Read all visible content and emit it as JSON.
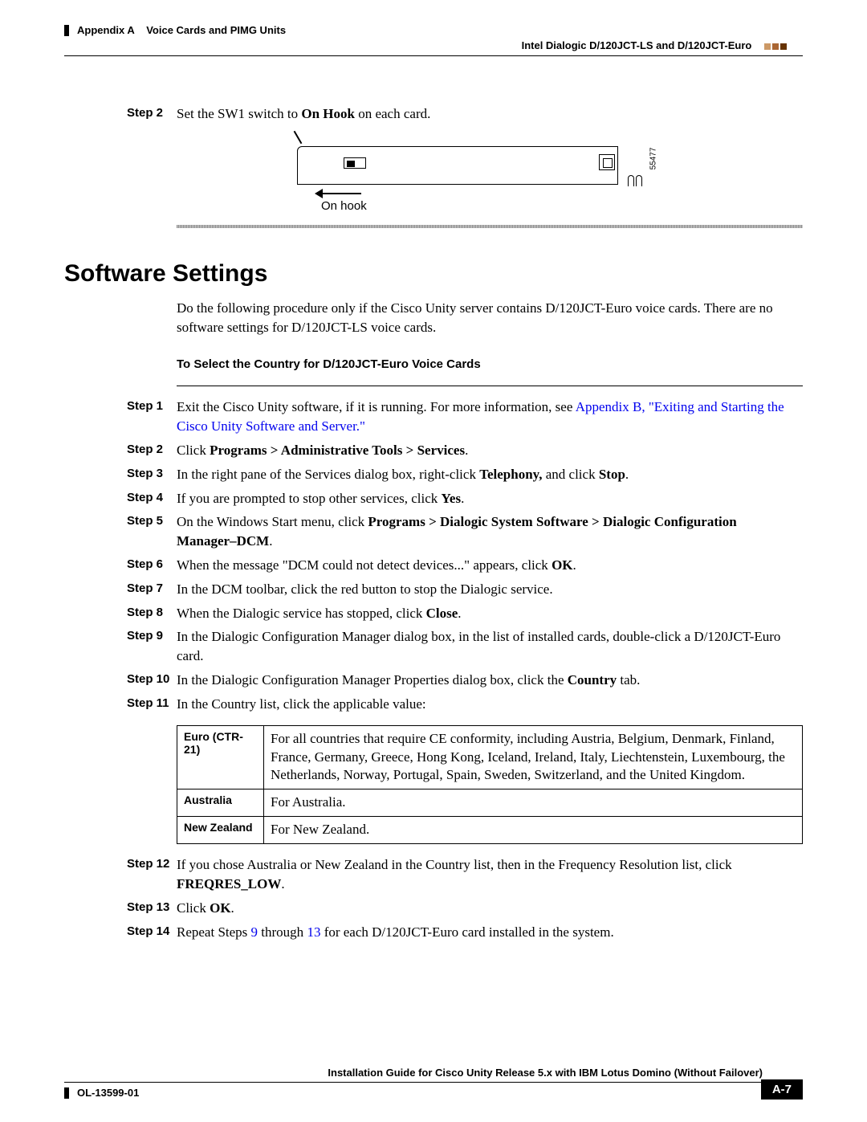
{
  "header": {
    "appendix": "Appendix A",
    "chapter": "Voice Cards and PIMG Units",
    "section_right": "Intel Dialogic D/120JCT-LS and D/120JCT-Euro"
  },
  "pre_step": {
    "label": "Step 2",
    "text_before": "Set the SW1 switch to ",
    "text_bold": "On Hook",
    "text_after": " on each card."
  },
  "diagram": {
    "onhook_label": "On hook",
    "figure_number": "55477"
  },
  "section_title": "Software Settings",
  "intro": "Do the following procedure only if the Cisco Unity server contains D/120JCT-Euro voice cards. There are no software settings for D/120JCT-LS voice cards.",
  "procedure_title": "To Select the Country for D/120JCT-Euro Voice Cards",
  "steps": [
    {
      "label": "Step 1",
      "segments": [
        {
          "t": "Exit the Cisco Unity software, if it is running. For more information, see "
        },
        {
          "t": "Appendix B, \"Exiting and Starting the Cisco Unity Software and Server.\"",
          "cls": "link"
        }
      ]
    },
    {
      "label": "Step 2",
      "segments": [
        {
          "t": "Click "
        },
        {
          "t": "Programs > Administrative Tools > Services",
          "cls": "bold"
        },
        {
          "t": "."
        }
      ]
    },
    {
      "label": "Step 3",
      "segments": [
        {
          "t": "In the right pane of the Services dialog box, right-click "
        },
        {
          "t": "Telephony,",
          "cls": "bold"
        },
        {
          "t": " and click "
        },
        {
          "t": "Stop",
          "cls": "bold"
        },
        {
          "t": "."
        }
      ]
    },
    {
      "label": "Step 4",
      "segments": [
        {
          "t": "If you are prompted to stop other services, click "
        },
        {
          "t": "Yes",
          "cls": "bold"
        },
        {
          "t": "."
        }
      ]
    },
    {
      "label": "Step 5",
      "segments": [
        {
          "t": "On the Windows Start menu, click "
        },
        {
          "t": "Programs > Dialogic System Software > Dialogic Configuration Manager–DCM",
          "cls": "bold"
        },
        {
          "t": "."
        }
      ]
    },
    {
      "label": "Step 6",
      "segments": [
        {
          "t": "When the message \"DCM could not detect devices...\" appears, click "
        },
        {
          "t": "OK",
          "cls": "bold"
        },
        {
          "t": "."
        }
      ]
    },
    {
      "label": "Step 7",
      "segments": [
        {
          "t": "In the DCM toolbar, click the red button to stop the Dialogic service."
        }
      ]
    },
    {
      "label": "Step 8",
      "segments": [
        {
          "t": "When the Dialogic service has stopped, click "
        },
        {
          "t": "Close",
          "cls": "bold"
        },
        {
          "t": "."
        }
      ]
    },
    {
      "label": "Step 9",
      "segments": [
        {
          "t": "In the Dialogic Configuration Manager dialog box, in the list of installed cards, double-click a D/120JCT-Euro card."
        }
      ]
    },
    {
      "label": "Step 10",
      "segments": [
        {
          "t": "In the Dialogic Configuration Manager Properties dialog box, click the "
        },
        {
          "t": "Country",
          "cls": "bold"
        },
        {
          "t": " tab."
        }
      ]
    },
    {
      "label": "Step 11",
      "segments": [
        {
          "t": "In the Country list, click the applicable value:"
        }
      ]
    }
  ],
  "country_table": {
    "rows": [
      {
        "name": "Euro (CTR-21)",
        "desc": "For all countries that require CE conformity, including Austria, Belgium, Denmark, Finland, France, Germany, Greece, Hong Kong, Iceland, Ireland, Italy, Liechtenstein, Luxembourg, the Netherlands, Norway, Portugal, Spain, Sweden, Switzerland, and the United Kingdom."
      },
      {
        "name": "Australia",
        "desc": "For Australia."
      },
      {
        "name": "New Zealand",
        "desc": "For New Zealand."
      }
    ]
  },
  "steps_after": [
    {
      "label": "Step 12",
      "segments": [
        {
          "t": "If you chose Australia or New Zealand in the Country list, then in the Frequency Resolution list, click "
        },
        {
          "t": "FREQRES_LOW",
          "cls": "bold"
        },
        {
          "t": "."
        }
      ]
    },
    {
      "label": "Step 13",
      "segments": [
        {
          "t": "Click "
        },
        {
          "t": "OK",
          "cls": "bold"
        },
        {
          "t": "."
        }
      ]
    },
    {
      "label": "Step 14",
      "segments": [
        {
          "t": "Repeat Steps "
        },
        {
          "t": "9",
          "cls": "link"
        },
        {
          "t": " through "
        },
        {
          "t": "13",
          "cls": "link"
        },
        {
          "t": " for each D/120JCT-Euro card installed in the system."
        }
      ]
    }
  ],
  "footer": {
    "guide_title": "Installation Guide for Cisco Unity Release 5.x with IBM Lotus Domino (Without Failover)",
    "doc_id": "OL-13599-01",
    "page": "A-7"
  }
}
